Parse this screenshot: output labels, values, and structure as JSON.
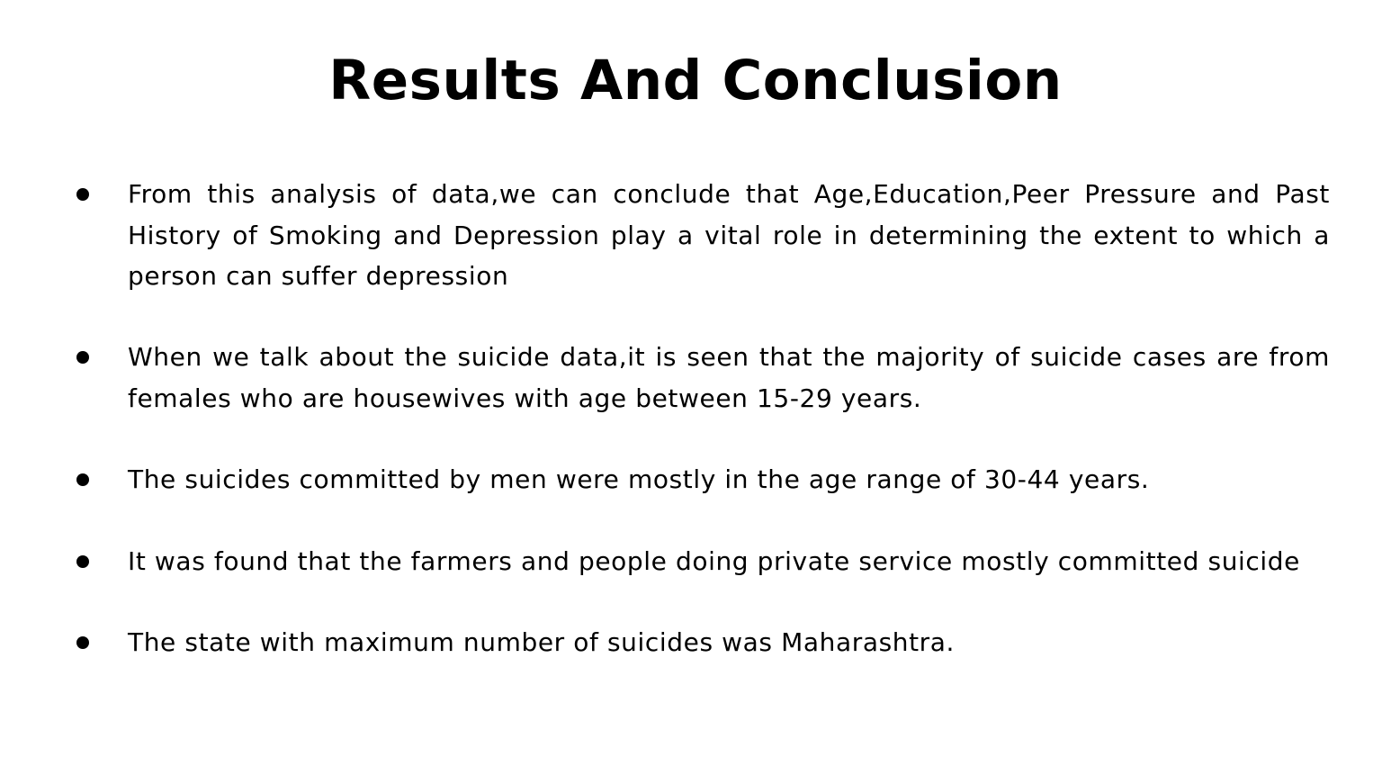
{
  "slide": {
    "title": "Results And Conclusion",
    "bullets": [
      "From this analysis of data,we can conclude that Age,Education,Peer Pressure and Past History of Smoking and Depression play a vital role in determining the extent to which a person can suffer depression",
      "When we talk about the suicide data,it is seen that the majority of suicide cases are from females who are housewives with age between 15-29 years.",
      "The suicides committed by men were mostly in the age range of 30-44 years.",
      "It was found that the farmers and people doing private service mostly committed suicide",
      "The state with maximum number of suicides was Maharashtra."
    ],
    "bullet_icon": "filled-circle-bullet",
    "colors": {
      "background": "#ffffff",
      "text": "#000000"
    }
  }
}
